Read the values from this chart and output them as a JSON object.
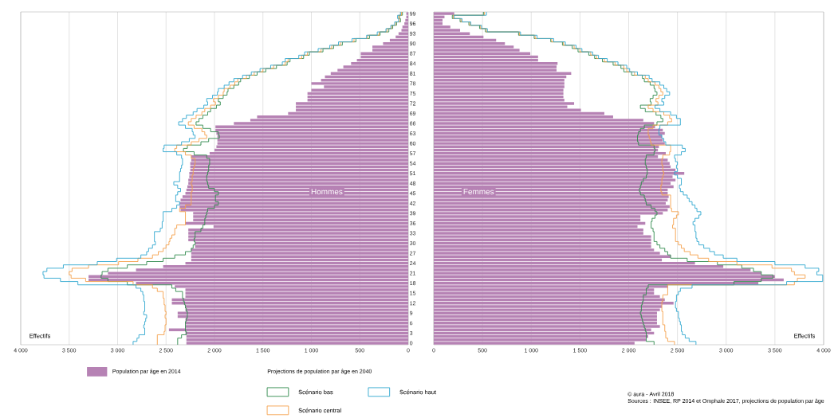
{
  "chart_data": [
    {
      "type": "bar",
      "orientation": "horizontal",
      "xlabel": "Effectifs",
      "grid": "x",
      "legend": "bottom",
      "legend_title": "Projections de population par âge en 2040",
      "annotations": [
        "Hommes"
      ],
      "xlim": [
        4000,
        0
      ],
      "xticks": [
        {
          "value": 4000,
          "label": "4 000"
        },
        {
          "value": 3500,
          "label": "3 500"
        },
        {
          "value": 3000,
          "label": "3 000"
        },
        {
          "value": 2500,
          "label": "2 500"
        },
        {
          "value": 2000,
          "label": "2 000"
        },
        {
          "value": 1500,
          "label": "1 500"
        },
        {
          "value": 1000,
          "label": "1 000"
        },
        500,
        0
      ],
      "categories": [
        "99",
        null,
        null,
        "96",
        null,
        null,
        "93",
        null,
        null,
        "90",
        null,
        null,
        "87",
        null,
        null,
        "84",
        null,
        null,
        "81",
        null,
        null,
        "78",
        null,
        null,
        "75",
        null,
        null,
        "72",
        null,
        null,
        "69",
        null,
        null,
        "66",
        null,
        null,
        "63",
        null,
        null,
        "60",
        null,
        null,
        "57",
        null,
        null,
        "54",
        null,
        null,
        "51",
        null,
        null,
        "48",
        null,
        null,
        "45",
        null,
        null,
        "42",
        null,
        null,
        "39",
        null,
        null,
        "36",
        null,
        null,
        "33",
        null,
        null,
        "30",
        null,
        null,
        "27",
        null,
        null,
        "24",
        null,
        null,
        "21",
        null,
        null,
        "18",
        null,
        null,
        "15",
        null,
        null,
        "12",
        null,
        null,
        "9",
        null,
        null,
        "6",
        null,
        null,
        "3",
        null,
        null,
        "0"
      ],
      "series": [
        {
          "name": "Population par âge en 2014",
          "color": "#b682b4",
          "values": [
            20,
            20,
            30,
            40,
            60,
            70,
            100,
            130,
            190,
            260,
            370,
            370,
            490,
            490,
            530,
            590,
            670,
            730,
            800,
            860,
            900,
            1000,
            870,
            1000,
            1040,
            1040,
            1040,
            1160,
            1160,
            1160,
            1240,
            1560,
            1630,
            1800,
            1990,
            1990,
            1980,
            1970,
            1970,
            1970,
            1980,
            2000,
            2050,
            2240,
            2240,
            2250,
            2250,
            2250,
            2260,
            2260,
            2270,
            2270,
            2280,
            2290,
            2300,
            2330,
            2350,
            2360,
            2360,
            2350,
            2220,
            2220,
            2220,
            2300,
            2010,
            2270,
            2270,
            2270,
            2270,
            2200,
            2200,
            2240,
            2240,
            2240,
            2240,
            2300,
            2530,
            2810,
            3100,
            3300,
            3300,
            2810,
            2410,
            2300,
            2300,
            2300,
            2440,
            2440,
            2300,
            2300,
            2380,
            2380,
            2300,
            2300,
            2300,
            2470,
            2300,
            2290,
            2290,
            2290
          ]
        },
        {
          "type": "step",
          "name": "Scénario bas",
          "color": "#2f8a4c",
          "values": [
            60,
            90,
            80,
            120,
            160,
            200,
            290,
            400,
            540,
            680,
            770,
            880,
            1020,
            1080,
            1220,
            1250,
            1360,
            1470,
            1560,
            1640,
            1730,
            1750,
            1800,
            1860,
            1870,
            1910,
            1960,
            1940,
            1980,
            2040,
            2070,
            2120,
            2160,
            2190,
            2120,
            2040,
            1960,
            1950,
            2060,
            2140,
            2280,
            2320,
            2210,
            2080,
            2050,
            2050,
            2060,
            2060,
            2070,
            2080,
            2080,
            2070,
            2060,
            2000,
            1960,
            1990,
            1990,
            1960,
            2000,
            2070,
            2080,
            2090,
            2100,
            2100,
            2120,
            2140,
            2200,
            2200,
            2210,
            2200,
            2220,
            2240,
            2300,
            2410,
            2530,
            2700,
            2900,
            3100,
            3160,
            3170,
            3100,
            2900,
            2440,
            2400,
            2330,
            2330,
            2320,
            2310,
            2300,
            2290,
            2280,
            2280,
            2290,
            2300,
            2300,
            2300,
            2290,
            2340,
            2380,
            2380
          ]
        },
        {
          "type": "step",
          "name": "Scénario central",
          "color": "#f5a04a",
          "values": [
            70,
            100,
            90,
            130,
            170,
            220,
            300,
            420,
            560,
            700,
            790,
            900,
            1040,
            1100,
            1240,
            1270,
            1390,
            1500,
            1590,
            1670,
            1760,
            1790,
            1840,
            1900,
            1910,
            1960,
            2010,
            1990,
            2040,
            2100,
            2130,
            2190,
            2240,
            2270,
            2210,
            2130,
            2100,
            2080,
            2160,
            2240,
            2390,
            2410,
            2300,
            2240,
            2200,
            2200,
            2210,
            2220,
            2220,
            2230,
            2230,
            2240,
            2230,
            2230,
            2240,
            2240,
            2240,
            2240,
            2300,
            2360,
            2300,
            2300,
            2300,
            2300,
            2390,
            2410,
            2410,
            2440,
            2460,
            2470,
            2500,
            2530,
            2580,
            2640,
            2790,
            2990,
            3300,
            3470,
            3500,
            3480,
            3330,
            2840,
            2640,
            2590,
            2530,
            2530,
            2520,
            2520,
            2510,
            2510,
            2500,
            2510,
            2500,
            2500,
            2510,
            2510,
            2520,
            2590,
            2590,
            2590
          ]
        },
        {
          "type": "step",
          "name": "Scénario haut",
          "color": "#2ea7cf",
          "values": [
            80,
            110,
            100,
            140,
            180,
            230,
            320,
            430,
            580,
            720,
            810,
            930,
            1070,
            1130,
            1270,
            1300,
            1420,
            1530,
            1620,
            1710,
            1800,
            1850,
            1900,
            1960,
            1970,
            2020,
            2080,
            2070,
            2110,
            2180,
            2220,
            2290,
            2330,
            2370,
            2300,
            2230,
            2220,
            2200,
            2260,
            2340,
            2520,
            2530,
            2390,
            2340,
            2330,
            2330,
            2340,
            2350,
            2360,
            2360,
            2360,
            2420,
            2380,
            2350,
            2380,
            2400,
            2400,
            2360,
            2390,
            2440,
            2530,
            2530,
            2530,
            2540,
            2540,
            2560,
            2620,
            2620,
            2620,
            2610,
            2640,
            2680,
            2700,
            2760,
            3010,
            3210,
            3560,
            3730,
            3770,
            3760,
            3590,
            3410,
            2810,
            2760,
            2740,
            2730,
            2730,
            2720,
            2720,
            2720,
            2730,
            2700,
            2710,
            2720,
            2730,
            2720,
            2720,
            2780,
            2800,
            2840
          ]
        }
      ]
    },
    {
      "type": "bar",
      "orientation": "horizontal",
      "xlabel": "Effectifs",
      "grid": "x",
      "tick_labels": "x",
      "annotations": [
        "Femmes",
        "© aura - Avril 2018",
        "Sources : INSEE, RP 2014 et Omphale 2017, projections de population par âge"
      ],
      "xlim": [
        0,
        4000
      ],
      "xticks": [
        0,
        500,
        {
          "value": 1000,
          "label": "1 000"
        },
        {
          "value": 1500,
          "label": "1 500"
        },
        {
          "value": 2000,
          "label": "2 000"
        },
        {
          "value": 2500,
          "label": "2 500"
        },
        {
          "value": 3000,
          "label": "3 000"
        },
        {
          "value": 3500,
          "label": "3 500"
        },
        {
          "value": 4000,
          "label": "4 000"
        }
      ],
      "categories": [
        "99",
        null,
        null,
        "96",
        null,
        null,
        "93",
        null,
        null,
        "90",
        null,
        null,
        "87",
        null,
        null,
        "84",
        null,
        null,
        "81",
        null,
        null,
        "78",
        null,
        null,
        "75",
        null,
        null,
        "72",
        null,
        null,
        "69",
        null,
        null,
        "66",
        null,
        null,
        "63",
        null,
        null,
        "60",
        null,
        null,
        "57",
        null,
        null,
        "54",
        null,
        null,
        "51",
        null,
        null,
        "48",
        null,
        null,
        "45",
        null,
        null,
        "42",
        null,
        null,
        "39",
        null,
        null,
        "36",
        null,
        null,
        "33",
        null,
        null,
        "30",
        null,
        null,
        "27",
        null,
        null,
        "24",
        null,
        null,
        "21",
        null,
        null,
        "18",
        null,
        null,
        "15",
        null,
        null,
        "12",
        null,
        null,
        "9",
        null,
        null,
        "6",
        null,
        null,
        "3",
        null,
        null,
        "0"
      ],
      "series": [
        {
          "color": "#b682b4",
          "values": [
            210,
            110,
            90,
            90,
            170,
            270,
            370,
            510,
            640,
            730,
            820,
            880,
            990,
            1070,
            1070,
            1270,
            1260,
            1260,
            1410,
            1360,
            1340,
            1340,
            1340,
            1330,
            1330,
            1330,
            1340,
            1440,
            1370,
            1510,
            1750,
            1840,
            2150,
            2260,
            2270,
            2350,
            2370,
            2340,
            2350,
            2370,
            2310,
            2300,
            2380,
            2300,
            2400,
            2420,
            2430,
            2480,
            2570,
            2450,
            2480,
            2430,
            2460,
            2400,
            2400,
            2410,
            2400,
            2380,
            2420,
            2400,
            2350,
            2120,
            2120,
            2170,
            2090,
            2150,
            2150,
            2230,
            2230,
            2230,
            2230,
            2260,
            2320,
            2430,
            2340,
            2680,
            2970,
            3250,
            3360,
            3500,
            3590,
            3330,
            2400,
            2260,
            2260,
            2320,
            2370,
            2460,
            2340,
            2320,
            2290,
            2290,
            2290,
            2290,
            2320,
            2230,
            2260,
            2200,
            2180,
            2060
          ]
        },
        {
          "type": "step",
          "color": "#2f8a4c",
          "values": [
            510,
            190,
            270,
            360,
            470,
            530,
            870,
            1030,
            1200,
            1320,
            1420,
            1480,
            1590,
            1650,
            1730,
            1840,
            1920,
            1950,
            2030,
            2140,
            2160,
            2220,
            2260,
            2270,
            2290,
            2250,
            2220,
            2230,
            2120,
            2170,
            2280,
            2330,
            2350,
            2290,
            2160,
            2120,
            2100,
            2090,
            2090,
            2100,
            2260,
            2270,
            2260,
            2180,
            2170,
            2170,
            2180,
            2190,
            2190,
            2180,
            2150,
            2130,
            2120,
            2110,
            2120,
            2160,
            2170,
            2180,
            2230,
            2270,
            2290,
            2270,
            2240,
            2230,
            2230,
            2250,
            2260,
            2260,
            2260,
            2290,
            2320,
            2370,
            2400,
            2430,
            2600,
            2910,
            3160,
            3280,
            3360,
            3480,
            3360,
            3080,
            2200,
            2180,
            2180,
            2150,
            2150,
            2140,
            2130,
            2130,
            2120,
            2130,
            2140,
            2150,
            2160,
            2170,
            2180,
            2180,
            2180,
            2260
          ]
        },
        {
          "type": "step",
          "color": "#f5a04a",
          "values": [
            520,
            200,
            280,
            370,
            480,
            540,
            880,
            1040,
            1210,
            1330,
            1440,
            1500,
            1610,
            1670,
            1750,
            1860,
            1950,
            1980,
            2060,
            2170,
            2200,
            2270,
            2310,
            2330,
            2350,
            2310,
            2280,
            2300,
            2200,
            2250,
            2360,
            2420,
            2440,
            2400,
            2250,
            2200,
            2200,
            2210,
            2220,
            2230,
            2430,
            2430,
            2420,
            2350,
            2340,
            2340,
            2350,
            2350,
            2360,
            2350,
            2340,
            2340,
            2330,
            2330,
            2340,
            2430,
            2430,
            2430,
            2430,
            2440,
            2510,
            2490,
            2460,
            2460,
            2450,
            2480,
            2480,
            2480,
            2480,
            2510,
            2540,
            2570,
            2630,
            2710,
            2820,
            3110,
            3470,
            3670,
            3700,
            3810,
            3730,
            3700,
            2400,
            2400,
            2400,
            2350,
            2350,
            2340,
            2340,
            2340,
            2350,
            2350,
            2350,
            2350,
            2370,
            2370,
            2380,
            2380,
            2400,
            2470
          ]
        },
        {
          "type": "step",
          "color": "#2ea7cf",
          "values": [
            540,
            210,
            290,
            380,
            490,
            550,
            890,
            1060,
            1230,
            1350,
            1460,
            1520,
            1630,
            1690,
            1780,
            1890,
            1980,
            2010,
            2090,
            2210,
            2240,
            2320,
            2360,
            2390,
            2420,
            2370,
            2340,
            2360,
            2270,
            2320,
            2430,
            2490,
            2530,
            2530,
            2320,
            2310,
            2310,
            2340,
            2360,
            2380,
            2550,
            2580,
            2540,
            2470,
            2480,
            2500,
            2490,
            2500,
            2470,
            2500,
            2540,
            2540,
            2520,
            2530,
            2560,
            2600,
            2620,
            2650,
            2680,
            2700,
            2740,
            2720,
            2680,
            2660,
            2680,
            2680,
            2690,
            2690,
            2700,
            2720,
            2770,
            2830,
            2880,
            2970,
            3110,
            3500,
            3810,
            3950,
            3930,
            3990,
            3990,
            3620,
            2650,
            2530,
            2510,
            2490,
            2490,
            2480,
            2480,
            2490,
            2510,
            2510,
            2520,
            2530,
            2540,
            2540,
            2550,
            2580,
            2620,
            2690
          ]
        }
      ]
    }
  ]
}
